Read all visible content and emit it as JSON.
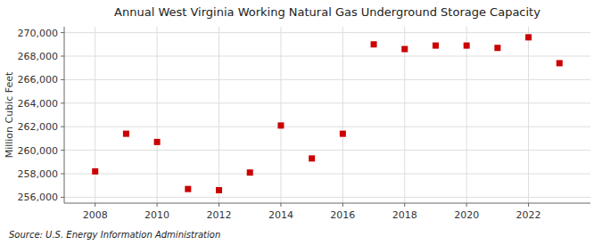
{
  "chart_data": {
    "type": "scatter",
    "title": "Annual West Virginia Working Natural Gas Underground Storage Capacity",
    "ylabel": "Million Cubic Feet",
    "annotations": [
      "Source: U.S. Energy Information Administration"
    ],
    "x": [
      2008,
      2009,
      2010,
      2011,
      2012,
      2013,
      2014,
      2015,
      2016,
      2017,
      2018,
      2019,
      2020,
      2021,
      2022,
      2023
    ],
    "values": [
      258200,
      261400,
      260700,
      256700,
      256600,
      258100,
      262100,
      259300,
      261400,
      269000,
      268600,
      268900,
      268900,
      268700,
      269600,
      267400
    ],
    "color": "#cc0000",
    "marker": "square",
    "xlim": [
      2007.0,
      2024.0
    ],
    "xticks": [
      2008,
      2010,
      2012,
      2014,
      2016,
      2018,
      2020,
      2022
    ],
    "ylim": [
      255500,
      270500
    ],
    "yticks": [
      {
        "value": 256000,
        "label": "256,000"
      },
      {
        "value": 258000,
        "label": "258,000"
      },
      {
        "value": 260000,
        "label": "260,000"
      },
      {
        "value": 262000,
        "label": "262,000"
      },
      {
        "value": 264000,
        "label": "264,000"
      },
      {
        "value": 266000,
        "label": "266,000"
      },
      {
        "value": 268000,
        "label": "268,000"
      },
      {
        "value": 270000,
        "label": "270,000"
      }
    ],
    "grid": true
  }
}
